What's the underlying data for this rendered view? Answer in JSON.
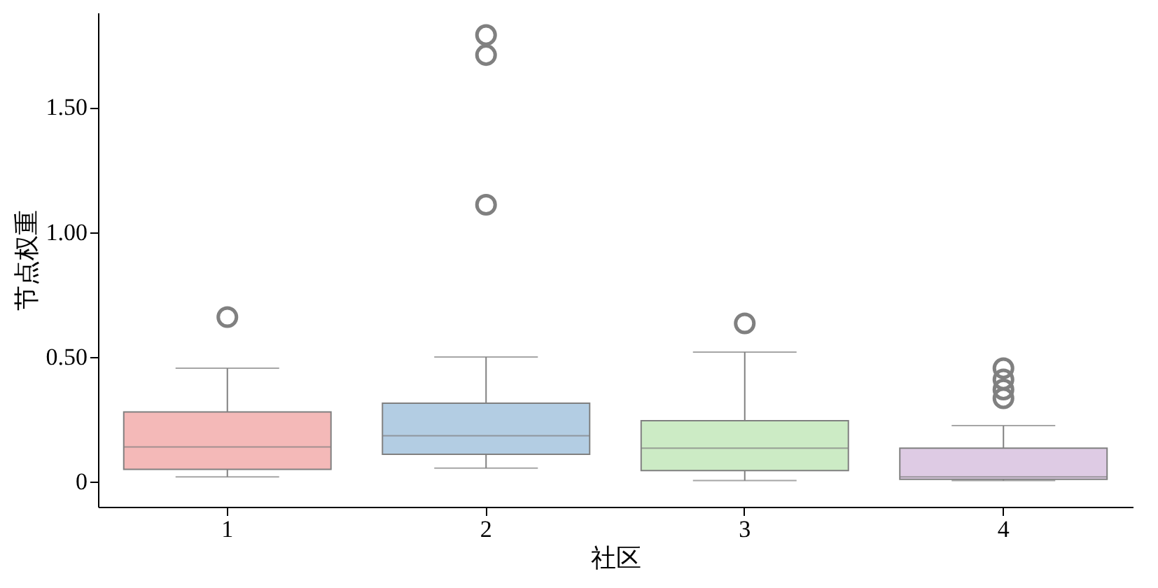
{
  "chart_data": {
    "type": "box",
    "xlabel": "社区",
    "ylabel": "节点权重",
    "categories": [
      "1",
      "2",
      "3",
      "4"
    ],
    "colors": [
      "#f4b9b8",
      "#b3cde3",
      "#ccebc5",
      "#decbe4"
    ],
    "boxes": [
      {
        "low": 0.02,
        "q1": 0.05,
        "median": 0.14,
        "q3": 0.28,
        "high": 0.455,
        "outliers": [
          0.66
        ]
      },
      {
        "low": 0.055,
        "q1": 0.11,
        "median": 0.185,
        "q3": 0.315,
        "high": 0.5,
        "outliers": [
          1.79,
          1.71,
          1.11
        ]
      },
      {
        "low": 0.005,
        "q1": 0.045,
        "median": 0.135,
        "q3": 0.245,
        "high": 0.52,
        "outliers": [
          0.635
        ]
      },
      {
        "low": 0.005,
        "q1": 0.01,
        "median": 0.02,
        "q3": 0.135,
        "high": 0.225,
        "outliers": [
          0.455,
          0.41,
          0.37,
          0.335
        ]
      }
    ],
    "ylim": [
      -0.1,
      1.88
    ],
    "yticks": [
      0,
      {
        "value": 0.5,
        "label": "0.50"
      },
      {
        "value": 1,
        "label": "1.00"
      },
      {
        "value": 1.5,
        "label": "1.50"
      }
    ],
    "grid": false,
    "legend": false
  }
}
